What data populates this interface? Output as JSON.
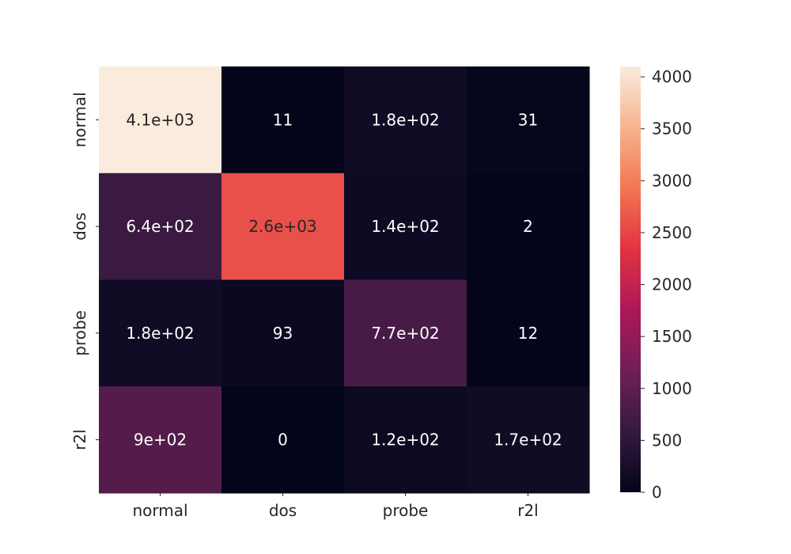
{
  "chart_data": {
    "type": "heatmap",
    "x_labels": [
      "normal",
      "dos",
      "probe",
      "r2l"
    ],
    "y_labels": [
      "normal",
      "dos",
      "probe",
      "r2l"
    ],
    "values": [
      [
        4100,
        11,
        180,
        31
      ],
      [
        640,
        2600,
        140,
        2
      ],
      [
        180,
        93,
        770,
        12
      ],
      [
        900,
        0,
        120,
        170
      ]
    ],
    "annotations": [
      [
        "4.1e+03",
        "11",
        "1.8e+02",
        "31"
      ],
      [
        "6.4e+02",
        "2.6e+03",
        "1.4e+02",
        "2"
      ],
      [
        "1.8e+02",
        "93",
        "7.7e+02",
        "12"
      ],
      [
        "9e+02",
        "0",
        "1.2e+02",
        "1.7e+02"
      ]
    ],
    "colorbar": {
      "min": 0,
      "max": 4100,
      "ticks": [
        0,
        500,
        1000,
        1500,
        2000,
        2500,
        3000,
        3500,
        4000
      ],
      "tick_labels": [
        "0",
        "500",
        "1000",
        "1500",
        "2000",
        "2500",
        "3000",
        "3500",
        "4000"
      ],
      "colormap": "rocket",
      "colormap_stops": [
        "#03051a",
        "#35193e",
        "#701f57",
        "#ad1759",
        "#e13342",
        "#f37651",
        "#f6b48f",
        "#faebdd"
      ]
    },
    "grid": false
  }
}
